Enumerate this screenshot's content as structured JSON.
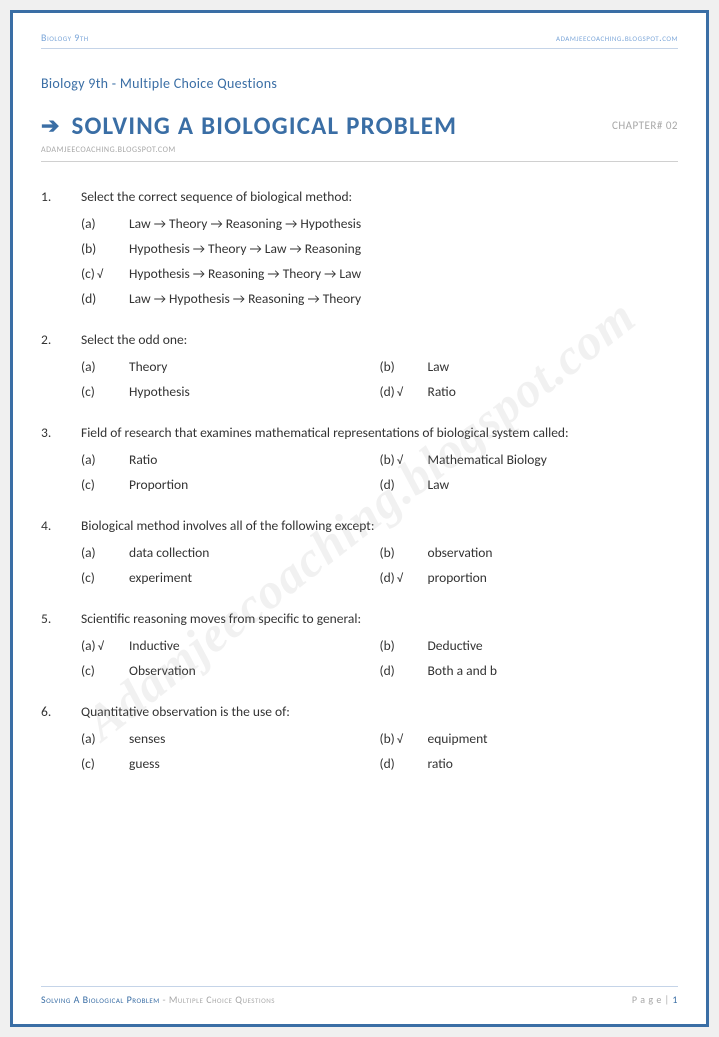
{
  "header": {
    "left": "Biology 9th",
    "right": "adamjeecoaching.blogspot.com"
  },
  "subtitle": "Biology 9th  -  Multiple Choice Questions",
  "title": "SOLVING A BIOLOGICAL PROBLEM",
  "chapter": "CHAPTER# 02",
  "urlsmall": "ADAMJEECOACHING.BLOGSPOT.COM",
  "watermark": "Adamjeecoaching.blogspot.com",
  "questions": [
    {
      "num": "1.",
      "text": "Select the correct sequence of biological method:",
      "layout": "1col",
      "options": [
        {
          "label": "(a)",
          "correct": false,
          "text": "Law → Theory → Reasoning → Hypothesis"
        },
        {
          "label": "(b)",
          "correct": false,
          "text": "Hypothesis → Theory → Law → Reasoning"
        },
        {
          "label": "(c)",
          "correct": true,
          "text": "Hypothesis → Reasoning → Theory → Law"
        },
        {
          "label": "(d)",
          "correct": false,
          "text": "Law → Hypothesis → Reasoning → Theory"
        }
      ]
    },
    {
      "num": "2.",
      "text": "Select the odd one:",
      "layout": "2col",
      "options": [
        {
          "label": "(a)",
          "correct": false,
          "text": "Theory"
        },
        {
          "label": "(b)",
          "correct": false,
          "text": "Law"
        },
        {
          "label": "(c)",
          "correct": false,
          "text": "Hypothesis"
        },
        {
          "label": "(d)",
          "correct": true,
          "text": "Ratio"
        }
      ]
    },
    {
      "num": "3.",
      "text": "Field of research that examines mathematical representations of biological system called:",
      "layout": "2col",
      "options": [
        {
          "label": "(a)",
          "correct": false,
          "text": "Ratio"
        },
        {
          "label": "(b)",
          "correct": true,
          "text": "Mathematical Biology"
        },
        {
          "label": "(c)",
          "correct": false,
          "text": "Proportion"
        },
        {
          "label": "(d)",
          "correct": false,
          "text": "Law"
        }
      ]
    },
    {
      "num": "4.",
      "text": "Biological method involves all of the following except:",
      "layout": "2col",
      "options": [
        {
          "label": "(a)",
          "correct": false,
          "text": "data collection"
        },
        {
          "label": "(b)",
          "correct": false,
          "text": "observation"
        },
        {
          "label": "(c)",
          "correct": false,
          "text": "experiment"
        },
        {
          "label": "(d)",
          "correct": true,
          "text": "proportion"
        }
      ]
    },
    {
      "num": "5.",
      "text": "Scientific reasoning moves from specific to general:",
      "layout": "2col",
      "options": [
        {
          "label": "(a)",
          "correct": true,
          "text": "Inductive"
        },
        {
          "label": "(b)",
          "correct": false,
          "text": "Deductive"
        },
        {
          "label": "(c)",
          "correct": false,
          "text": "Observation"
        },
        {
          "label": "(d)",
          "correct": false,
          "text": "Both a and b"
        }
      ]
    },
    {
      "num": "6.",
      "text": "Quantitative observation is the use of:",
      "layout": "2col",
      "options": [
        {
          "label": "(a)",
          "correct": false,
          "text": "senses"
        },
        {
          "label": "(b)",
          "correct": true,
          "text": "equipment"
        },
        {
          "label": "(c)",
          "correct": false,
          "text": "guess"
        },
        {
          "label": "(d)",
          "correct": false,
          "text": "ratio"
        }
      ]
    }
  ],
  "footer": {
    "left_bold": "Solving A Biological Problem",
    "left_gray": " - Multiple Choice Questions",
    "right_label": "P a g e  | ",
    "page_num": "1"
  },
  "colors": {
    "border": "#3a6ea5",
    "accent": "#3a6ea5",
    "muted": "#a8a8a8"
  }
}
